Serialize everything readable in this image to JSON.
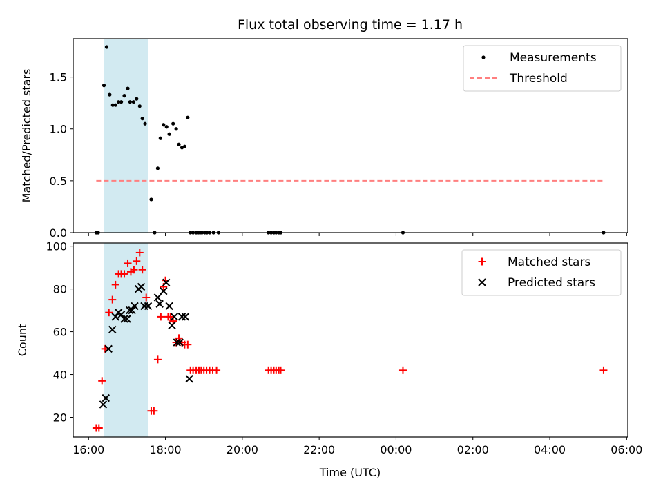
{
  "title": "Flux total observing time = 1.17 h",
  "colors": {
    "measurement": "#000000",
    "threshold": "#ff7f7f",
    "shade": "#add8e6",
    "matched": "#ff0000",
    "predicted": "#000000"
  },
  "chart_data": [
    {
      "type": "scatter",
      "ylabel": "Matched/Predicted stars",
      "ylim": [
        0,
        1.87
      ],
      "yticks": [
        0.0,
        0.5,
        1.0,
        1.5
      ],
      "ytick_labels": [
        "0.0",
        "0.5",
        "1.0",
        "1.5"
      ],
      "x_range_hours": [
        15.6,
        30.03
      ],
      "shaded_span_hours": [
        16.4,
        17.55
      ],
      "legend": {
        "position": "top-right",
        "entries": [
          "Measurements",
          "Threshold"
        ]
      },
      "threshold": {
        "name": "Threshold",
        "value": 0.5,
        "x_hours": [
          16.2,
          29.4
        ]
      },
      "series": [
        {
          "name": "Measurements",
          "x_hours": [
            16.2,
            16.25,
            16.4,
            16.47,
            16.55,
            16.63,
            16.7,
            16.78,
            16.85,
            16.93,
            17.02,
            17.08,
            17.17,
            17.25,
            17.33,
            17.4,
            17.47,
            17.63,
            17.72,
            17.8,
            17.87,
            17.95,
            18.03,
            18.1,
            18.2,
            18.28,
            18.35,
            18.43,
            18.5,
            18.58,
            18.65,
            18.72,
            18.8,
            18.85,
            18.9,
            18.95,
            19.02,
            19.08,
            19.15,
            19.25,
            19.38,
            20.68,
            20.75,
            20.82,
            20.88,
            20.95,
            21.0,
            24.18,
            29.4
          ],
          "y": [
            0.0,
            0.0,
            1.42,
            1.79,
            1.33,
            1.23,
            1.23,
            1.26,
            1.26,
            1.32,
            1.39,
            1.26,
            1.26,
            1.29,
            1.22,
            1.1,
            1.05,
            0.32,
            0.0,
            0.62,
            0.91,
            1.04,
            1.02,
            0.95,
            1.05,
            1.0,
            0.85,
            0.82,
            0.83,
            1.11,
            0.0,
            0.0,
            0.0,
            0.0,
            0.0,
            0.0,
            0.0,
            0.0,
            0.0,
            0.0,
            0.0,
            0.0,
            0.0,
            0.0,
            0.0,
            0.0,
            0.0,
            0.0,
            0.0
          ]
        }
      ]
    },
    {
      "type": "scatter",
      "xlabel": "Time (UTC)",
      "ylabel": "Count",
      "ylim": [
        10.8,
        101.5
      ],
      "yticks": [
        20,
        40,
        60,
        80,
        100
      ],
      "ytick_labels": [
        "20",
        "40",
        "60",
        "80",
        "100"
      ],
      "x_range_hours": [
        15.6,
        30.03
      ],
      "xticks_hours": [
        16,
        18,
        20,
        22,
        24,
        26,
        28,
        30
      ],
      "xtick_labels": [
        "16:00",
        "18:00",
        "20:00",
        "22:00",
        "00:00",
        "02:00",
        "04:00",
        "06:00"
      ],
      "shaded_span_hours": [
        16.4,
        17.55
      ],
      "legend": {
        "position": "top-right",
        "entries": [
          "Matched stars",
          "Predicted stars"
        ]
      },
      "series": [
        {
          "name": "Matched stars",
          "marker": "plus",
          "x_hours": [
            16.2,
            16.27,
            16.35,
            16.43,
            16.53,
            16.62,
            16.7,
            16.78,
            16.85,
            16.93,
            17.02,
            17.1,
            17.18,
            17.25,
            17.33,
            17.4,
            17.5,
            17.63,
            17.7,
            17.8,
            17.88,
            17.95,
            18.0,
            18.07,
            18.13,
            18.2,
            18.28,
            18.35,
            18.43,
            18.5,
            18.58,
            18.65,
            18.72,
            18.8,
            18.87,
            18.93,
            19.0,
            19.07,
            19.15,
            19.23,
            19.33,
            20.68,
            20.75,
            20.82,
            20.88,
            20.95,
            21.0,
            24.18,
            29.4
          ],
          "y": [
            15,
            15,
            37,
            52,
            69,
            75,
            82,
            87,
            87,
            87,
            92,
            88,
            89,
            93,
            97,
            89,
            76,
            23,
            23,
            47,
            67,
            81,
            84,
            67,
            67,
            65,
            55,
            57,
            55,
            54,
            54,
            42,
            42,
            42,
            42,
            42,
            42,
            42,
            42,
            42,
            42,
            42,
            42,
            42,
            42,
            42,
            42,
            42,
            42
          ]
        },
        {
          "name": "Predicted stars",
          "marker": "x",
          "x_hours": [
            16.38,
            16.45,
            16.52,
            16.62,
            16.7,
            16.78,
            16.85,
            16.93,
            17.0,
            17.07,
            17.13,
            17.2,
            17.3,
            17.37,
            17.45,
            17.55,
            17.8,
            17.85,
            17.95,
            18.02,
            18.1,
            18.17,
            18.23,
            18.3,
            18.37,
            18.43,
            18.52,
            18.62
          ],
          "y": [
            26,
            29,
            52,
            61,
            67,
            69,
            68,
            66,
            66,
            70,
            70,
            72,
            80,
            81,
            72,
            72,
            76,
            73,
            79,
            83,
            72,
            63,
            67,
            55,
            55,
            67,
            67,
            38
          ]
        }
      ]
    }
  ]
}
